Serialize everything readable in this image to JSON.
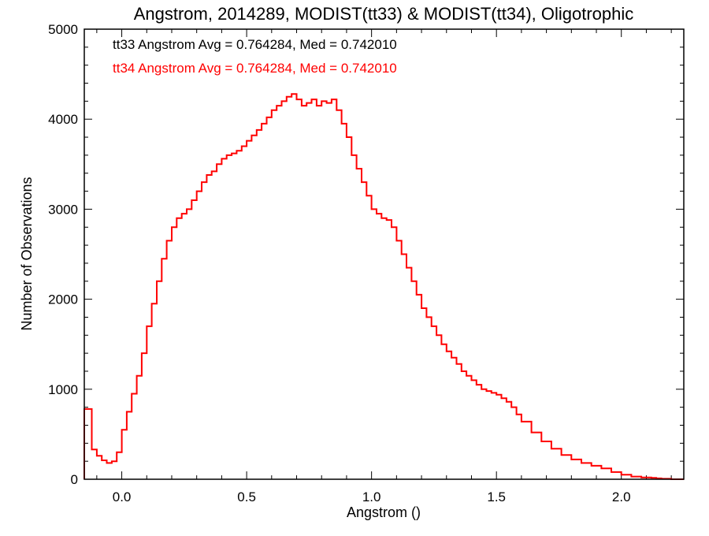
{
  "chart_data": {
    "type": "line",
    "step": true,
    "title": "Angstrom, 2014289, MODIST(tt33) & MODIST(tt34), Oligotrophic",
    "xlabel": "Angstrom ()",
    "ylabel": "Number of Observations",
    "xlim": [
      -0.15,
      2.25
    ],
    "ylim": [
      0,
      5000
    ],
    "x_ticks": [
      {
        "value": 0.0,
        "label": "0.0"
      },
      {
        "value": 0.5,
        "label": "0.5"
      },
      {
        "value": 1.0,
        "label": "1.0"
      },
      {
        "value": 1.5,
        "label": "1.5"
      },
      {
        "value": 2.0,
        "label": "2.0"
      }
    ],
    "y_ticks": [
      {
        "value": 0,
        "label": "0"
      },
      {
        "value": 1000,
        "label": "1000"
      },
      {
        "value": 2000,
        "label": "2000"
      },
      {
        "value": 3000,
        "label": "3000"
      },
      {
        "value": 4000,
        "label": "4000"
      },
      {
        "value": 5000,
        "label": "5000"
      }
    ],
    "annotations": [
      {
        "text": "tt33 Angstrom Avg = 0.764284, Med = 0.742010",
        "color": "#000000"
      },
      {
        "text": "tt34 Angstrom Avg = 0.764284, Med = 0.742010",
        "color": "#ff0000"
      }
    ],
    "series": [
      {
        "color": "#ff0000",
        "x": [
          -0.15,
          -0.12,
          -0.1,
          -0.08,
          -0.06,
          -0.04,
          -0.02,
          0.0,
          0.02,
          0.04,
          0.06,
          0.08,
          0.1,
          0.12,
          0.14,
          0.16,
          0.18,
          0.2,
          0.22,
          0.24,
          0.26,
          0.28,
          0.3,
          0.32,
          0.34,
          0.36,
          0.38,
          0.4,
          0.42,
          0.44,
          0.46,
          0.48,
          0.5,
          0.52,
          0.54,
          0.56,
          0.58,
          0.6,
          0.62,
          0.64,
          0.66,
          0.68,
          0.7,
          0.72,
          0.74,
          0.76,
          0.78,
          0.8,
          0.82,
          0.84,
          0.86,
          0.88,
          0.9,
          0.92,
          0.94,
          0.96,
          0.98,
          1.0,
          1.02,
          1.04,
          1.06,
          1.08,
          1.1,
          1.12,
          1.14,
          1.16,
          1.18,
          1.2,
          1.22,
          1.24,
          1.26,
          1.28,
          1.3,
          1.32,
          1.34,
          1.36,
          1.38,
          1.4,
          1.42,
          1.44,
          1.46,
          1.48,
          1.5,
          1.52,
          1.54,
          1.56,
          1.58,
          1.6,
          1.64,
          1.68,
          1.72,
          1.76,
          1.8,
          1.84,
          1.88,
          1.92,
          1.96,
          2.0,
          2.04,
          2.08,
          2.12,
          2.14,
          2.16,
          2.2,
          2.25
        ],
        "y": [
          780,
          330,
          260,
          210,
          180,
          200,
          300,
          550,
          750,
          950,
          1150,
          1400,
          1700,
          1950,
          2200,
          2450,
          2650,
          2800,
          2900,
          2950,
          3000,
          3100,
          3200,
          3300,
          3380,
          3420,
          3500,
          3560,
          3600,
          3620,
          3650,
          3700,
          3760,
          3820,
          3880,
          3950,
          4020,
          4100,
          4150,
          4200,
          4250,
          4280,
          4220,
          4150,
          4180,
          4220,
          4150,
          4200,
          4180,
          4220,
          4100,
          3950,
          3800,
          3600,
          3450,
          3300,
          3150,
          3000,
          2950,
          2900,
          2880,
          2800,
          2650,
          2500,
          2350,
          2200,
          2050,
          1900,
          1800,
          1700,
          1600,
          1500,
          1420,
          1350,
          1280,
          1200,
          1150,
          1100,
          1050,
          1000,
          980,
          960,
          940,
          900,
          860,
          800,
          720,
          640,
          520,
          420,
          340,
          270,
          220,
          180,
          150,
          120,
          80,
          50,
          30,
          20,
          15,
          10,
          5,
          0,
          0
        ]
      }
    ]
  }
}
